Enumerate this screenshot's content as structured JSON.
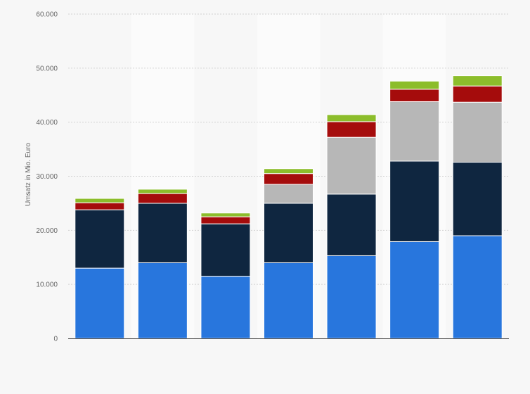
{
  "chart_data": {
    "type": "bar",
    "stacked": true,
    "title": "",
    "xlabel": "",
    "ylabel": "Umsatz in Mio. Euro",
    "ylim": [
      0,
      60000
    ],
    "yticks": [
      0,
      10000,
      20000,
      30000,
      40000,
      50000,
      60000
    ],
    "ytick_labels": [
      "0",
      "10.000",
      "20.000",
      "30.000",
      "40.000",
      "50.000",
      "60.000"
    ],
    "grid": true,
    "legend": "none",
    "categories": [
      "",
      "",
      "",
      "",
      "",
      "",
      ""
    ],
    "series": [
      {
        "color": "#2876dd",
        "values": [
          13000,
          14000,
          11500,
          14000,
          15300,
          17900,
          19000
        ]
      },
      {
        "color": "#0f2640",
        "values": [
          10800,
          11000,
          9700,
          11000,
          11400,
          14900,
          13600
        ]
      },
      {
        "color": "#b7b7b7",
        "values": [
          0,
          0,
          0,
          3500,
          10500,
          11000,
          11100
        ]
      },
      {
        "color": "#a50c0c",
        "values": [
          1300,
          1800,
          1300,
          2000,
          2900,
          2300,
          3000
        ]
      },
      {
        "color": "#8cbd2b",
        "values": [
          800,
          800,
          700,
          900,
          1300,
          1500,
          1900
        ]
      }
    ]
  }
}
